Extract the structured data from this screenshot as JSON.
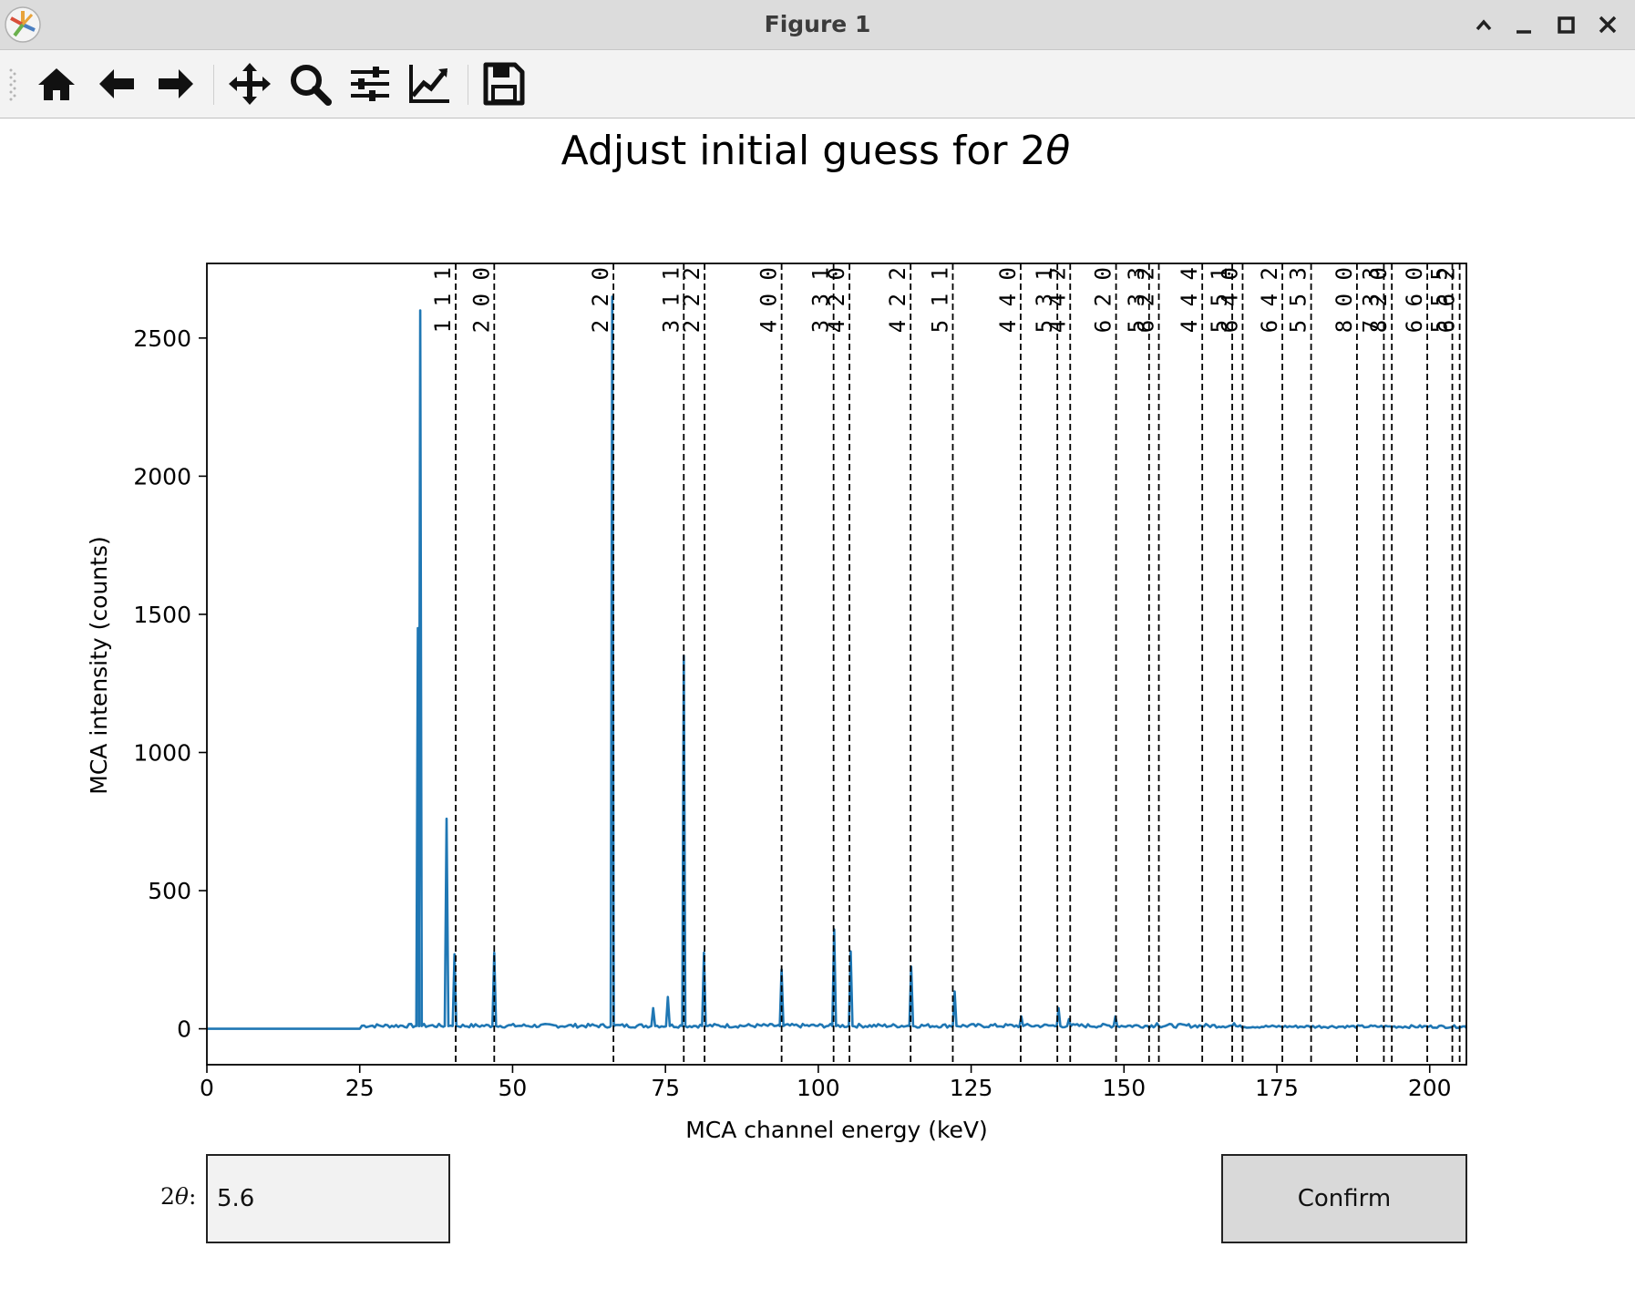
{
  "window": {
    "title": "Figure 1"
  },
  "toolbar": {
    "buttons": [
      {
        "id": "home",
        "icon": "home-icon"
      },
      {
        "id": "back",
        "icon": "arrow-left-icon"
      },
      {
        "id": "forward",
        "icon": "arrow-right-icon"
      },
      {
        "id": "pan",
        "icon": "move-icon"
      },
      {
        "id": "zoom",
        "icon": "magnifier-icon"
      },
      {
        "id": "subplots",
        "icon": "sliders-icon"
      },
      {
        "id": "edit",
        "icon": "line-chart-icon"
      },
      {
        "id": "save",
        "icon": "floppy-disk-icon"
      }
    ]
  },
  "controls": {
    "twotheta_label_pre": "2",
    "twotheta_label_theta": "θ",
    "twotheta_label_post": ":",
    "twotheta_value": "5.6",
    "confirm_label": "Confirm"
  },
  "colors": {
    "line": "#1f77b4",
    "titlebar": "#dcdcdc",
    "toolbar": "#f3f3f3"
  },
  "chart_data": {
    "type": "line",
    "title": "Adjust initial guess for 2θ",
    "xlabel": "MCA channel energy (keV)",
    "ylabel": "MCA intensity (counts)",
    "xlim": [
      0,
      206
    ],
    "ylim": [
      -130,
      2770
    ],
    "xticks": [
      0,
      25,
      50,
      75,
      100,
      125,
      150,
      175,
      200
    ],
    "yticks": [
      0,
      500,
      1000,
      1500,
      2000,
      2500
    ],
    "grid": false,
    "series": [
      {
        "color": "#1f77b4",
        "baseline_start": 25,
        "peaks": [
          {
            "x": 34.5,
            "y": 1450
          },
          {
            "x": 34.9,
            "y": 2600
          },
          {
            "x": 39.2,
            "y": 760
          },
          {
            "x": 40.5,
            "y": 270
          },
          {
            "x": 47.0,
            "y": 275
          },
          {
            "x": 66.3,
            "y": 2650
          },
          {
            "x": 73.0,
            "y": 75
          },
          {
            "x": 75.4,
            "y": 115
          },
          {
            "x": 78.0,
            "y": 1350
          },
          {
            "x": 81.3,
            "y": 275
          },
          {
            "x": 94.0,
            "y": 215
          },
          {
            "x": 102.6,
            "y": 360
          },
          {
            "x": 105.3,
            "y": 280
          },
          {
            "x": 115.2,
            "y": 225
          },
          {
            "x": 122.3,
            "y": 135
          },
          {
            "x": 133.2,
            "y": 45
          },
          {
            "x": 139.3,
            "y": 75
          },
          {
            "x": 141.0,
            "y": 35
          },
          {
            "x": 148.6,
            "y": 45
          },
          {
            "x": 155.4,
            "y": 20
          },
          {
            "x": 168.0,
            "y": 20
          }
        ]
      }
    ],
    "reflections": [
      {
        "label": "1 1 1",
        "x": 40.7
      },
      {
        "label": "2 0 0",
        "x": 47.0
      },
      {
        "label": "2 2 0",
        "x": 66.5
      },
      {
        "label": "3 1 1",
        "x": 78.0
      },
      {
        "label": "2 2 2",
        "x": 81.4
      },
      {
        "label": "4 0 0",
        "x": 94.0
      },
      {
        "label": "3 3 1",
        "x": 102.5
      },
      {
        "label": "4 2 0",
        "x": 105.1
      },
      {
        "label": "4 2 2",
        "x": 115.1
      },
      {
        "label": "5 1 1",
        "x": 122.0
      },
      {
        "label": "4 4 0",
        "x": 133.1
      },
      {
        "label": "5 3 1",
        "x": 139.1
      },
      {
        "label": "4 4 2",
        "x": 141.2
      },
      {
        "label": "6 2 0",
        "x": 148.7
      },
      {
        "label": "5 3 3",
        "x": 154.1
      },
      {
        "label": "6 2 2",
        "x": 155.7
      },
      {
        "label": "4 4 4",
        "x": 162.8
      },
      {
        "label": "5 5 1",
        "x": 167.7
      },
      {
        "label": "6 4 0",
        "x": 169.4
      },
      {
        "label": "6 4 2",
        "x": 175.9
      },
      {
        "label": "5 5 3",
        "x": 180.6
      },
      {
        "label": "8 0 0",
        "x": 188.1
      },
      {
        "label": "7 3 3",
        "x": 192.5
      },
      {
        "label": "8 2 0",
        "x": 193.8
      },
      {
        "label": "6 6 0",
        "x": 199.6
      },
      {
        "label": "5 5 5",
        "x": 203.7
      },
      {
        "label": "6 6 2",
        "x": 204.9
      }
    ]
  }
}
